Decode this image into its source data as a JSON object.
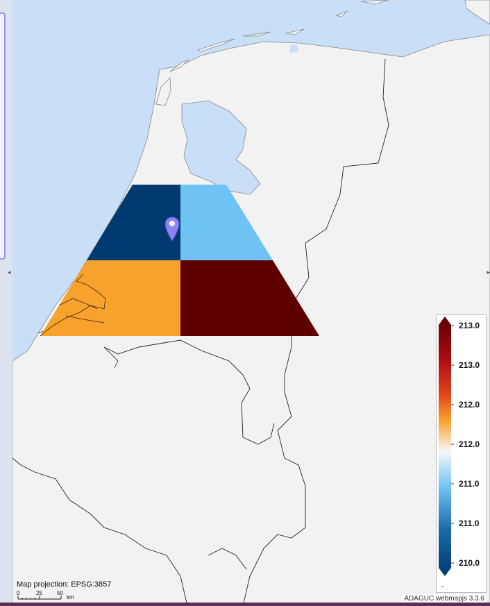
{
  "map": {
    "projection_label": "Map projection: EPSG:3857",
    "attribution": "ADAGUC webmapjs 3.3.6",
    "scale": {
      "unit": "km",
      "ticks": [
        "0",
        "25",
        "50"
      ]
    },
    "colors": {
      "sea": "#c8dff7",
      "land": "#f2f2f2",
      "border": "#222222"
    },
    "marker_icon": "location-pin-icon"
  },
  "data_layer": {
    "cells": [
      {
        "position": "top-left",
        "color": "#003a70"
      },
      {
        "position": "top-right",
        "color": "#6ec2f4"
      },
      {
        "position": "bottom-left",
        "color": "#f7a22d"
      },
      {
        "position": "bottom-right",
        "color": "#5e0000"
      }
    ]
  },
  "legend": {
    "labels": [
      "213.0",
      "213.0",
      "212.0",
      "212.0",
      "211.0",
      "211.0",
      "210.0"
    ],
    "nodata_label": "-",
    "colors": [
      "#5e0000",
      "#c41f1a",
      "#f7a22d",
      "#f7f7f7",
      "#6ec2f4",
      "#1b6aa8",
      "#003a70"
    ]
  }
}
